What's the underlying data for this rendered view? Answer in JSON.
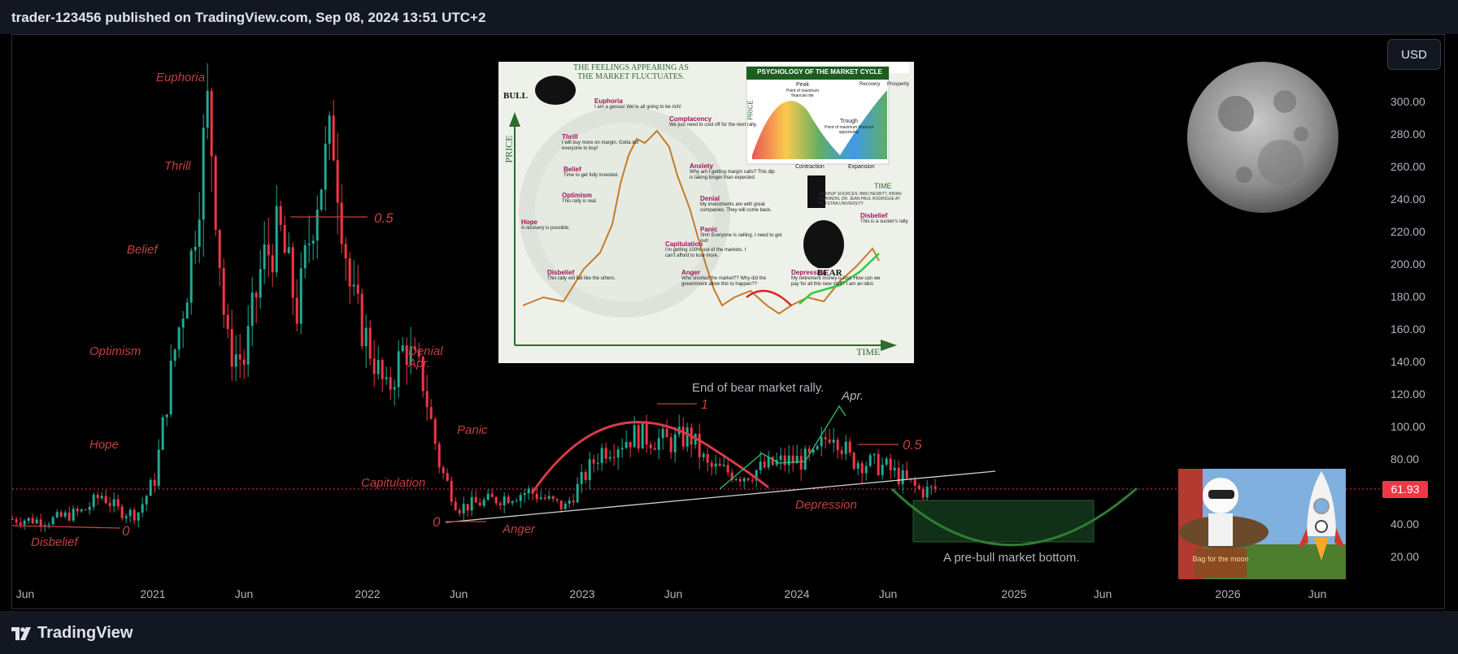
{
  "header": {
    "title": "trader-123456 published on TradingView.com, Sep 08, 2024 13:51 UTC+2"
  },
  "currency_button": "USD",
  "footer": {
    "brand": "TradingView"
  },
  "price_tag": "61.93",
  "colors": {
    "up": "#22ab94",
    "down": "#f23645",
    "annotation": "#c2403f",
    "bg": "#000000",
    "trendline": "#cfd2d6",
    "green_curve": "#2e7d32"
  },
  "chart_data": {
    "type": "candlestick",
    "title": "",
    "xlabel": "",
    "ylabel": "",
    "ylim": [
      10,
      330
    ],
    "y_ticks": [
      "300.00",
      "280.00",
      "260.00",
      "240.00",
      "220.00",
      "200.00",
      "180.00",
      "160.00",
      "140.00",
      "120.00",
      "100.00",
      "80.00",
      "60.00",
      "40.00",
      "20.00"
    ],
    "x_ticks": [
      "Jun",
      "2021",
      "Jun",
      "2022",
      "Jun",
      "2023",
      "Jun",
      "2024",
      "Jun",
      "2025",
      "Jun",
      "2026",
      "Jun"
    ],
    "last_price": 61.93,
    "series_close_path": [
      [
        "2020-05",
        43
      ],
      [
        "2020-07",
        42
      ],
      [
        "2020-09",
        48
      ],
      [
        "2020-10",
        58
      ],
      [
        "2020-11",
        48
      ],
      [
        "2020-12",
        46
      ],
      [
        "2021-01",
        68
      ],
      [
        "2021-02",
        140
      ],
      [
        "2021-03",
        200
      ],
      [
        "2021-04",
        300
      ],
      [
        "2021-05",
        150
      ],
      [
        "2021-06",
        140
      ],
      [
        "2021-07",
        200
      ],
      [
        "2021-08",
        220
      ],
      [
        "2021-09",
        170
      ],
      [
        "2021-10",
        240
      ],
      [
        "2021-11",
        280
      ],
      [
        "2021-12",
        180
      ],
      [
        "2022-01",
        150
      ],
      [
        "2022-02",
        120
      ],
      [
        "2022-03",
        150
      ],
      [
        "2022-04",
        130
      ],
      [
        "2022-05",
        75
      ],
      [
        "2022-06",
        50
      ],
      [
        "2022-08",
        55
      ],
      [
        "2022-10",
        60
      ],
      [
        "2022-12",
        50
      ],
      [
        "2023-02",
        85
      ],
      [
        "2023-04",
        95
      ],
      [
        "2023-06",
        90
      ],
      [
        "2023-07",
        95
      ],
      [
        "2023-08",
        75
      ],
      [
        "2023-10",
        70
      ],
      [
        "2023-12",
        78
      ],
      [
        "2024-02",
        80
      ],
      [
        "2024-03",
        100
      ],
      [
        "2024-04",
        80
      ],
      [
        "2024-06",
        75
      ],
      [
        "2024-08",
        60
      ],
      [
        "2024-09",
        61.93
      ]
    ],
    "annotations": {
      "phases": [
        "Euphoria",
        "Thrill",
        "Belief",
        "Optimism",
        "Hope",
        "Disbelief",
        "Denial",
        "Apr.",
        "Panic",
        "Capitulation",
        "Anger",
        "Depression"
      ],
      "fib_labels": [
        "0.5",
        "0",
        "0",
        "1",
        "0.5"
      ],
      "notes": [
        "End of bear market rally.",
        "Apr.",
        "A pre-bull market bottom."
      ]
    }
  },
  "inset_image": {
    "heading": "THE FEELINGS APPEARING AS THE MARKET FLUCTUATES.",
    "price_axis": "PRICE",
    "time_axis": "TIME",
    "bull_label": "BULL",
    "bear_label": "BEAR",
    "phases": [
      {
        "name": "Euphoria",
        "text": "I am a genius! We're all going to be rich!"
      },
      {
        "name": "Complacency",
        "text": "We just need to cool off for the next rally."
      },
      {
        "name": "Thrill",
        "text": "I will buy more on margin. Gotta tell everyone to buy!"
      },
      {
        "name": "Anxiety",
        "text": "Why am I getting margin calls? This dip is taking longer than expected."
      },
      {
        "name": "Belief",
        "text": "Time to get fully invested."
      },
      {
        "name": "Denial",
        "text": "My investments are with great companies. They will come back."
      },
      {
        "name": "Optimism",
        "text": "This rally is real."
      },
      {
        "name": "Panic",
        "text": "Shit! Everyone is selling. I need to get out!"
      },
      {
        "name": "Hope",
        "text": "A recovery is possible."
      },
      {
        "name": "Capitulation",
        "text": "I'm getting 100% out of the markets. I can't afford to lose more."
      },
      {
        "name": "Disbelief",
        "text": "This rally will fail like the others."
      },
      {
        "name": "Anger",
        "text": "Who shorted the market?? Why did the government allow this to happen??"
      },
      {
        "name": "Depression",
        "text": "My retirement money is lost. How can we pay for all this new stuff? I am an idiot."
      },
      {
        "name": "Disbelief",
        "text": "This is a sucker's rally."
      }
    ],
    "cycle_box": {
      "title": "PSYCHOLOGY OF THE MARKET CYCLE",
      "peak": "Peak",
      "peak_note": "Point of maximum financial risk",
      "trough": "Trough",
      "trough_note": "Point of maximum financial opportunity",
      "recovery": "Recovery",
      "prosperity": "Prosperity",
      "contraction": "Contraction",
      "expansion": "Expansion",
      "price": "PRICE",
      "time": "TIME",
      "sources": "MASHUP SOURCES: BMO NESBITT, BRIAN SHANNON, DR. JEAN PAUL RODRIGUE AT HOFSTRA UNIVERSITY"
    }
  },
  "sticker": {
    "text": "Bag for the moon"
  },
  "moon_icon": "moon-icon",
  "rocket_icon": "rocket-icon"
}
